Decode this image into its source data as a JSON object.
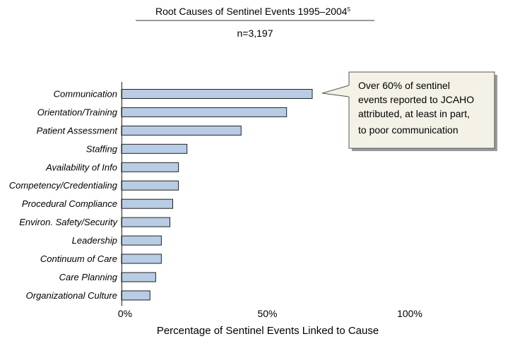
{
  "chart_data": {
    "type": "bar",
    "orientation": "horizontal",
    "title": "Root Causes of Sentinel Events 1995–2004",
    "title_superscript": "5",
    "subtitle": "n=3,197",
    "xlabel": "Percentage of Sentinel Events Linked to Cause",
    "ylabel": "",
    "xlim": [
      0,
      100
    ],
    "xticks": [
      0,
      50,
      100
    ],
    "xtick_labels": [
      "0%",
      "50%",
      "100%"
    ],
    "grid": false,
    "bar_color": "#b8cce4",
    "bar_edge_color": "#222222",
    "categories": [
      "Communication",
      "Orientation/Training",
      "Patient Assessment",
      "Staffing",
      "Availability of Info",
      "Competency/Credentialing",
      "Procedural Compliance",
      "Environ. Safety/Security",
      "Leadership",
      "Continuum of Care",
      "Care Planning",
      "Organizational Culture"
    ],
    "values": [
      67,
      58,
      42,
      23,
      20,
      20,
      18,
      17,
      14,
      14,
      12,
      10
    ],
    "annotation": {
      "target_category": "Communication",
      "lines": [
        "Over 60% of sentinel",
        "events reported to JCAHO",
        "attributed, at least in part,",
        "to poor communication"
      ],
      "fill_color": "#f4f2e6"
    }
  }
}
